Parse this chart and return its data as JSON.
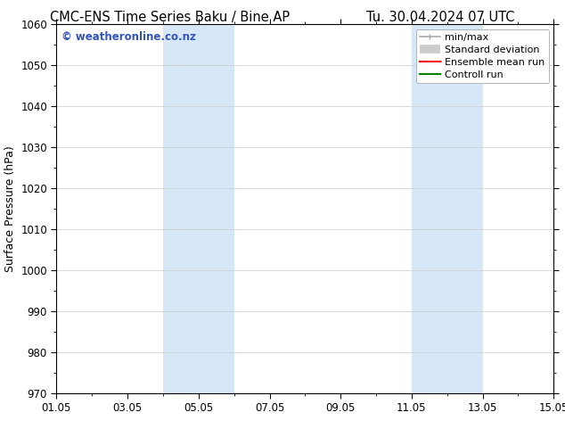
{
  "title_left": "CMC-ENS Time Series Baku / Bine AP",
  "title_right": "Tu. 30.04.2024 07 UTC",
  "ylabel": "Surface Pressure (hPa)",
  "ylim": [
    970,
    1060
  ],
  "yticks": [
    970,
    980,
    990,
    1000,
    1010,
    1020,
    1030,
    1040,
    1050,
    1060
  ],
  "x_start_day": 1,
  "x_end_day": 15,
  "xtick_labels": [
    "01.05",
    "03.05",
    "05.05",
    "07.05",
    "09.05",
    "11.05",
    "13.05",
    "15.05"
  ],
  "xtick_days": [
    1,
    3,
    5,
    7,
    9,
    11,
    13,
    15
  ],
  "shaded_bands": [
    {
      "x_start_day": 4,
      "x_end_day": 6
    },
    {
      "x_start_day": 11,
      "x_end_day": 13
    }
  ],
  "shaded_color": "#d6e8f7",
  "watermark_text": "© weatheronline.co.nz",
  "watermark_color": "#3355bb",
  "legend_items": [
    {
      "label": "min/max",
      "color": "#aaaaaa"
    },
    {
      "label": "Standard deviation",
      "color": "#cccccc"
    },
    {
      "label": "Ensemble mean run",
      "color": "red"
    },
    {
      "label": "Controll run",
      "color": "green"
    }
  ],
  "bg_color": "#ffffff",
  "plot_bg_color": "#ffffff",
  "grid_color": "#cccccc",
  "title_fontsize": 10.5,
  "label_fontsize": 9,
  "tick_fontsize": 8.5,
  "legend_fontsize": 8
}
